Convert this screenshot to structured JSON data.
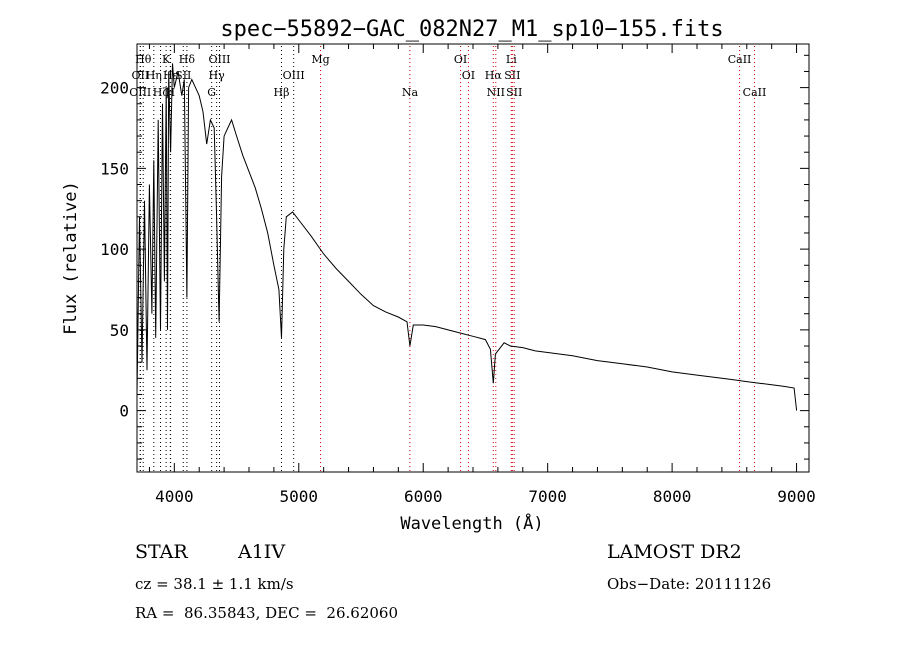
{
  "chart_data": {
    "type": "line",
    "title": "spec−55892−GAC_082N27_M1_sp10−155.fits",
    "xlabel": "Wavelength (Å)",
    "ylabel": "Flux (relative)",
    "xlim": [
      3700,
      9100
    ],
    "ylim": [
      -38,
      227
    ],
    "xticks": [
      4000,
      5000,
      6000,
      7000,
      8000,
      9000
    ],
    "yticks": [
      0,
      50,
      100,
      150,
      200
    ],
    "grid": false,
    "line_color": "#000000",
    "marker_color": "#cc0000",
    "series": [
      {
        "x": [
          3700,
          3720,
          3740,
          3760,
          3780,
          3800,
          3820,
          3835,
          3850,
          3870,
          3889,
          3905,
          3920,
          3935,
          3945,
          3955,
          3970,
          3985,
          4000,
          4030,
          4060,
          4080,
          4101,
          4115,
          4140,
          4170,
          4200,
          4230,
          4260,
          4290,
          4320,
          4340,
          4360,
          4380,
          4400,
          4430,
          4460,
          4500,
          4550,
          4600,
          4650,
          4700,
          4750,
          4800,
          4840,
          4861,
          4880,
          4900,
          4950,
          5000,
          5100,
          5200,
          5300,
          5400,
          5500,
          5600,
          5700,
          5800,
          5870,
          5893,
          5920,
          6000,
          6100,
          6200,
          6300,
          6400,
          6500,
          6540,
          6563,
          6580,
          6650,
          6700,
          6800,
          6900,
          7000,
          7200,
          7400,
          7600,
          7800,
          8000,
          8200,
          8400,
          8500,
          8600,
          8700,
          8800,
          8900,
          8980,
          9000
        ],
        "y": [
          10,
          120,
          30,
          130,
          25,
          140,
          60,
          155,
          45,
          180,
          50,
          190,
          80,
          200,
          50,
          210,
          160,
          215,
          200,
          210,
          195,
          205,
          70,
          200,
          205,
          200,
          195,
          185,
          165,
          180,
          175,
          120,
          55,
          145,
          170,
          175,
          180,
          170,
          158,
          148,
          138,
          125,
          110,
          90,
          75,
          45,
          100,
          120,
          123,
          118,
          108,
          97,
          88,
          80,
          72,
          65,
          61,
          58,
          55,
          40,
          53,
          53,
          52,
          50,
          48,
          46,
          44,
          38,
          17,
          35,
          42,
          40,
          39,
          37,
          36,
          34,
          31,
          29,
          27,
          24,
          22,
          20,
          19,
          18,
          17,
          16,
          15,
          14,
          0
        ]
      }
    ],
    "line_markers_top": [
      {
        "x": 3750,
        "label": "Hθ"
      },
      {
        "x": 3934,
        "label": "K"
      },
      {
        "x": 4101,
        "label": "Hδ"
      },
      {
        "x": 4363,
        "label": "OIII"
      },
      {
        "x": 5175,
        "label": "Mg"
      },
      {
        "x": 6300,
        "label": "OI"
      },
      {
        "x": 6708,
        "label": "Li"
      },
      {
        "x": 8542,
        "label": "CaII"
      }
    ],
    "line_markers_mid": [
      {
        "x": 3727,
        "label": "OII"
      },
      {
        "x": 3835,
        "label": "Hη"
      },
      {
        "x": 3970,
        "label": "Hε"
      },
      {
        "x": 4072,
        "label": "SII"
      },
      {
        "x": 4340,
        "label": "Hγ"
      },
      {
        "x": 4959,
        "label": "OIII"
      },
      {
        "x": 6363,
        "label": "OI"
      },
      {
        "x": 6563,
        "label": "Hα"
      },
      {
        "x": 6716,
        "label": "SII"
      }
    ],
    "line_markers_bottom": [
      {
        "x": 3726,
        "label": "OIII"
      },
      {
        "x": 3889,
        "label": "Hζ"
      },
      {
        "x": 3968,
        "label": "H"
      },
      {
        "x": 4300,
        "label": "G"
      },
      {
        "x": 4861,
        "label": "Hβ"
      },
      {
        "x": 5893,
        "label": "Na"
      },
      {
        "x": 6583,
        "label": "NII"
      },
      {
        "x": 6731,
        "label": "SII"
      },
      {
        "x": 8662,
        "label": "CaII"
      }
    ]
  },
  "info": {
    "object_type": "STAR",
    "spectral_class": "A1IV",
    "survey": "LAMOST DR2",
    "cz": "cz = 38.1 ± 1.1 km/s",
    "obs_date": "Obs−Date: 20111126",
    "coords": "RA =  86.35843, DEC =  26.62060"
  }
}
